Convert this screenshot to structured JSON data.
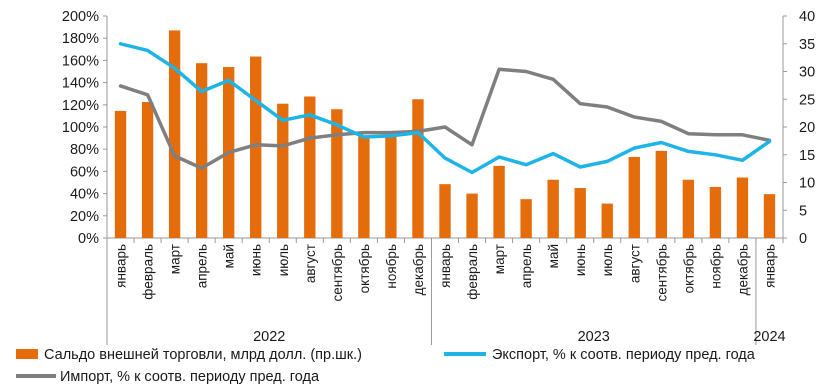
{
  "chart_data": {
    "type": "bar",
    "categories": [
      "январь",
      "февраль",
      "март",
      "апрель",
      "май",
      "июнь",
      "июль",
      "август",
      "сентябрь",
      "октябрь",
      "ноябрь",
      "декабрь",
      "январь",
      "февраль",
      "март",
      "апрель",
      "май",
      "июнь",
      "июль",
      "август",
      "сентябрь",
      "октябрь",
      "ноябрь",
      "декабрь",
      "январь"
    ],
    "years": [
      {
        "label": "2022",
        "from": 0,
        "to": 11
      },
      {
        "label": "2023",
        "from": 12,
        "to": 23
      },
      {
        "label": "2024",
        "from": 24,
        "to": 24
      }
    ],
    "series": [
      {
        "name": "Сальдо внешней торговли, млрд долл. (пр.шк.)",
        "type": "bar",
        "axis": "right",
        "color": "#E46C0A",
        "values": [
          22.9,
          24.5,
          37.4,
          31.5,
          30.8,
          32.7,
          24.2,
          25.5,
          23.2,
          18.5,
          18.5,
          25.0,
          9.7,
          8.0,
          13.0,
          7.0,
          10.5,
          9.0,
          6.2,
          14.6,
          15.7,
          10.5,
          9.2,
          10.9,
          7.9
        ]
      },
      {
        "name": "Экспорт, % к соотв. периоду пред. года",
        "type": "line",
        "axis": "left",
        "color": "#1EB4E6",
        "values": [
          175,
          169,
          153,
          132,
          142,
          124,
          106,
          111,
          102,
          91,
          92,
          95,
          72,
          59,
          73,
          66,
          76,
          64,
          69,
          81,
          86,
          78,
          75,
          70,
          87
        ]
      },
      {
        "name": "Импорт, % к соотв. периоду пред. года",
        "type": "line",
        "axis": "left",
        "color": "#7F7F7F",
        "values": [
          137,
          129,
          74,
          63,
          77,
          84,
          83,
          90,
          93,
          95,
          95,
          96,
          100,
          84,
          152,
          150,
          143,
          121,
          118,
          109,
          105,
          94,
          93,
          93,
          88
        ]
      }
    ],
    "y_left": {
      "min": 0,
      "max": 200,
      "ticks": [
        "0%",
        "20%",
        "40%",
        "60%",
        "80%",
        "100%",
        "120%",
        "140%",
        "160%",
        "180%",
        "200%"
      ]
    },
    "y_right": {
      "min": 0,
      "max": 40,
      "ticks": [
        "0",
        "5",
        "10",
        "15",
        "20",
        "25",
        "30",
        "35",
        "40"
      ]
    },
    "grid": false,
    "legend_position": "bottom",
    "legend": [
      "Сальдо внешней торговли, млрд долл. (пр.шк.)",
      "Экспорт, % к соотв. периоду пред. года",
      "Импорт, % к соотв. периоду пред. года"
    ]
  }
}
